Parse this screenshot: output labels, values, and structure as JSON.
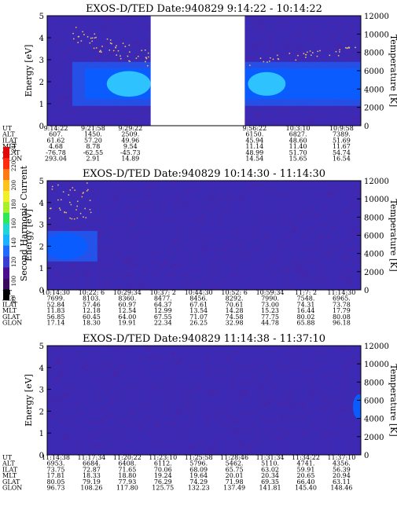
{
  "colors": {
    "background": "#3c2ab4",
    "stripe": "#5a1e96",
    "band_inner": "#0a5cff",
    "band_core": "#2ec3ff",
    "band_outer": "#2453ea",
    "dots": "#e8c060"
  },
  "colorbar": {
    "label": "Second Harmonic Current",
    "ticks": [
      "80",
      "100",
      "120",
      "140",
      "160",
      "180",
      "200",
      "220",
      "240"
    ],
    "colors": [
      "#000000",
      "#3b0a5e",
      "#4b0e8f",
      "#3a3ed0",
      "#1f6cff",
      "#19b3ff",
      "#1fd6d6",
      "#2ee85a",
      "#a8f02c",
      "#f0f02a",
      "#ffc21c",
      "#ff7a14",
      "#ff2a10",
      "#e00808"
    ]
  },
  "chart_data": [
    {
      "type": "heatmap",
      "title": "EXOS-D/TED   Date:940829  9:14:22 - 10:14:22",
      "ylabel": "Energy [eV]",
      "y2label": "Temperature [K]",
      "ylim": [
        0,
        5
      ],
      "y2lim": [
        0,
        12000
      ],
      "yticks": [
        "0",
        "1",
        "2",
        "3",
        "4",
        "5"
      ],
      "y2ticks": [
        "0",
        "2000",
        "4000",
        "6000",
        "8000",
        "10000",
        "12000"
      ],
      "data_gap": [
        0.33,
        0.63
      ],
      "table": {
        "labels": [
          "UT",
          "ALT",
          "ILAT",
          "MLT",
          "GLAT",
          "GLON"
        ],
        "columns": [
          {
            "pos": 0.0,
            "values": [
              "9:14:22",
              "607.",
              "61.62",
              "4.68",
              "-76.78",
              "293.04"
            ]
          },
          {
            "pos": 0.12,
            "values": [
              "9:21:58",
              "1450.",
              "57.20",
              "8.78",
              "-62.55",
              "2.91"
            ]
          },
          {
            "pos": 0.24,
            "values": [
              "9:29:22",
              "2509.",
              "49.96",
              "9.54",
              "-45.73",
              "14.89"
            ]
          },
          {
            "pos": 0.64,
            "values": [
              "9:56:22",
              "6150.",
              "45.94",
              "11.14",
              "48.99",
              "14.54"
            ]
          },
          {
            "pos": 0.78,
            "values": [
              "10:3:10",
              "6827.",
              "48.60",
              "11.40",
              "51.70",
              "15.65"
            ]
          },
          {
            "pos": 0.92,
            "values": [
              "10:9:58",
              "7389.",
              "51.69",
              "11.67",
              "54.74",
              "16.54"
            ]
          }
        ]
      }
    },
    {
      "type": "heatmap",
      "title": "EXOS-D/TED   Date:940829  10:14:30 - 11:14:30",
      "ylabel": "Energy [eV]",
      "y2label": "Temperature [K]",
      "ylim": [
        0,
        5
      ],
      "y2lim": [
        0,
        12000
      ],
      "yticks": [
        "0",
        "1",
        "2",
        "3",
        "4",
        "5"
      ],
      "y2ticks": [
        "0",
        "2000",
        "4000",
        "6000",
        "8000",
        "10000",
        "12000"
      ],
      "table": {
        "labels": [
          "UT",
          "ALT",
          "ILAT",
          "MLT",
          "GLAT",
          "GLON"
        ],
        "columns": [
          {
            "pos": 0.0,
            "values": [
              "10:14:30",
              "7699.",
              "52.84",
              "11.83",
              "56.85",
              "17.14"
            ]
          },
          {
            "pos": 0.115,
            "values": [
              "10:22: 6",
              "8103.",
              "57.46",
              "12.18",
              "60.45",
              "18.30"
            ]
          },
          {
            "pos": 0.23,
            "values": [
              "10:29:34",
              "8360.",
              "60.97",
              "12.54",
              "64.00",
              "19.91"
            ]
          },
          {
            "pos": 0.345,
            "values": [
              "10:37: 2",
              "8477.",
              "64.37",
              "12.99",
              "67.55",
              "22.34"
            ]
          },
          {
            "pos": 0.46,
            "values": [
              "10:44:30",
              "8456.",
              "67.61",
              "13.54",
              "71.07",
              "26.25"
            ]
          },
          {
            "pos": 0.575,
            "values": [
              "10:52: 6",
              "8292.",
              "70.61",
              "14.28",
              "74.58",
              "32.98"
            ]
          },
          {
            "pos": 0.69,
            "values": [
              "10:59:34",
              "7990.",
              "73.00",
              "15.23",
              "77.75",
              "44.78"
            ]
          },
          {
            "pos": 0.805,
            "values": [
              "11:7: 2",
              "7548.",
              "74.31",
              "16.44",
              "80.02",
              "65.88"
            ]
          },
          {
            "pos": 0.92,
            "values": [
              "11:14:30",
              "6965.",
              "73.78",
              "17.79",
              "80.08",
              "96.18"
            ]
          }
        ]
      }
    },
    {
      "type": "heatmap",
      "title": "EXOS-D/TED   Date:940829  11:14:38 - 11:37:10",
      "ylabel": "Energy [eV]",
      "y2label": "Temperature [K]",
      "ylim": [
        0,
        5
      ],
      "y2lim": [
        0,
        12000
      ],
      "yticks": [
        "0",
        "1",
        "2",
        "3",
        "4",
        "5"
      ],
      "y2ticks": [
        "0",
        "2000",
        "4000",
        "6000",
        "8000",
        "10000",
        "12000"
      ],
      "table": {
        "labels": [
          "UT",
          "ALT",
          "ILAT",
          "MLT",
          "GLAT",
          "GLON"
        ],
        "columns": [
          {
            "pos": 0.0,
            "values": [
              "11:14:38",
              "6953.",
              "73.75",
              "17.81",
              "80.05",
              "96.73"
            ]
          },
          {
            "pos": 0.115,
            "values": [
              "11:17:34",
              "6684.",
              "72.87",
              "18.33",
              "79.19",
              "108.26"
            ]
          },
          {
            "pos": 0.23,
            "values": [
              "11:20:22",
              "6408.",
              "71.65",
              "18.80",
              "77.93",
              "117.80"
            ]
          },
          {
            "pos": 0.345,
            "values": [
              "11:23:10",
              "6112.",
              "70.06",
              "19.24",
              "76.29",
              "125.75"
            ]
          },
          {
            "pos": 0.46,
            "values": [
              "11:25:58",
              "5796.",
              "68.09",
              "19.64",
              "74.29",
              "132.23"
            ]
          },
          {
            "pos": 0.575,
            "values": [
              "11:28:46",
              "5462.",
              "65.75",
              "20.01",
              "71.98",
              "137.49"
            ]
          },
          {
            "pos": 0.69,
            "values": [
              "11:31:34",
              "5110.",
              "63.02",
              "20.34",
              "69.35",
              "141.81"
            ]
          },
          {
            "pos": 0.805,
            "values": [
              "11:34:22",
              "4741.",
              "59.91",
              "20.65",
              "66.40",
              "145.40"
            ]
          },
          {
            "pos": 0.92,
            "values": [
              "11:37:10",
              "4356.",
              "56.39",
              "20.94",
              "63.11",
              "148.46"
            ]
          }
        ]
      }
    }
  ]
}
